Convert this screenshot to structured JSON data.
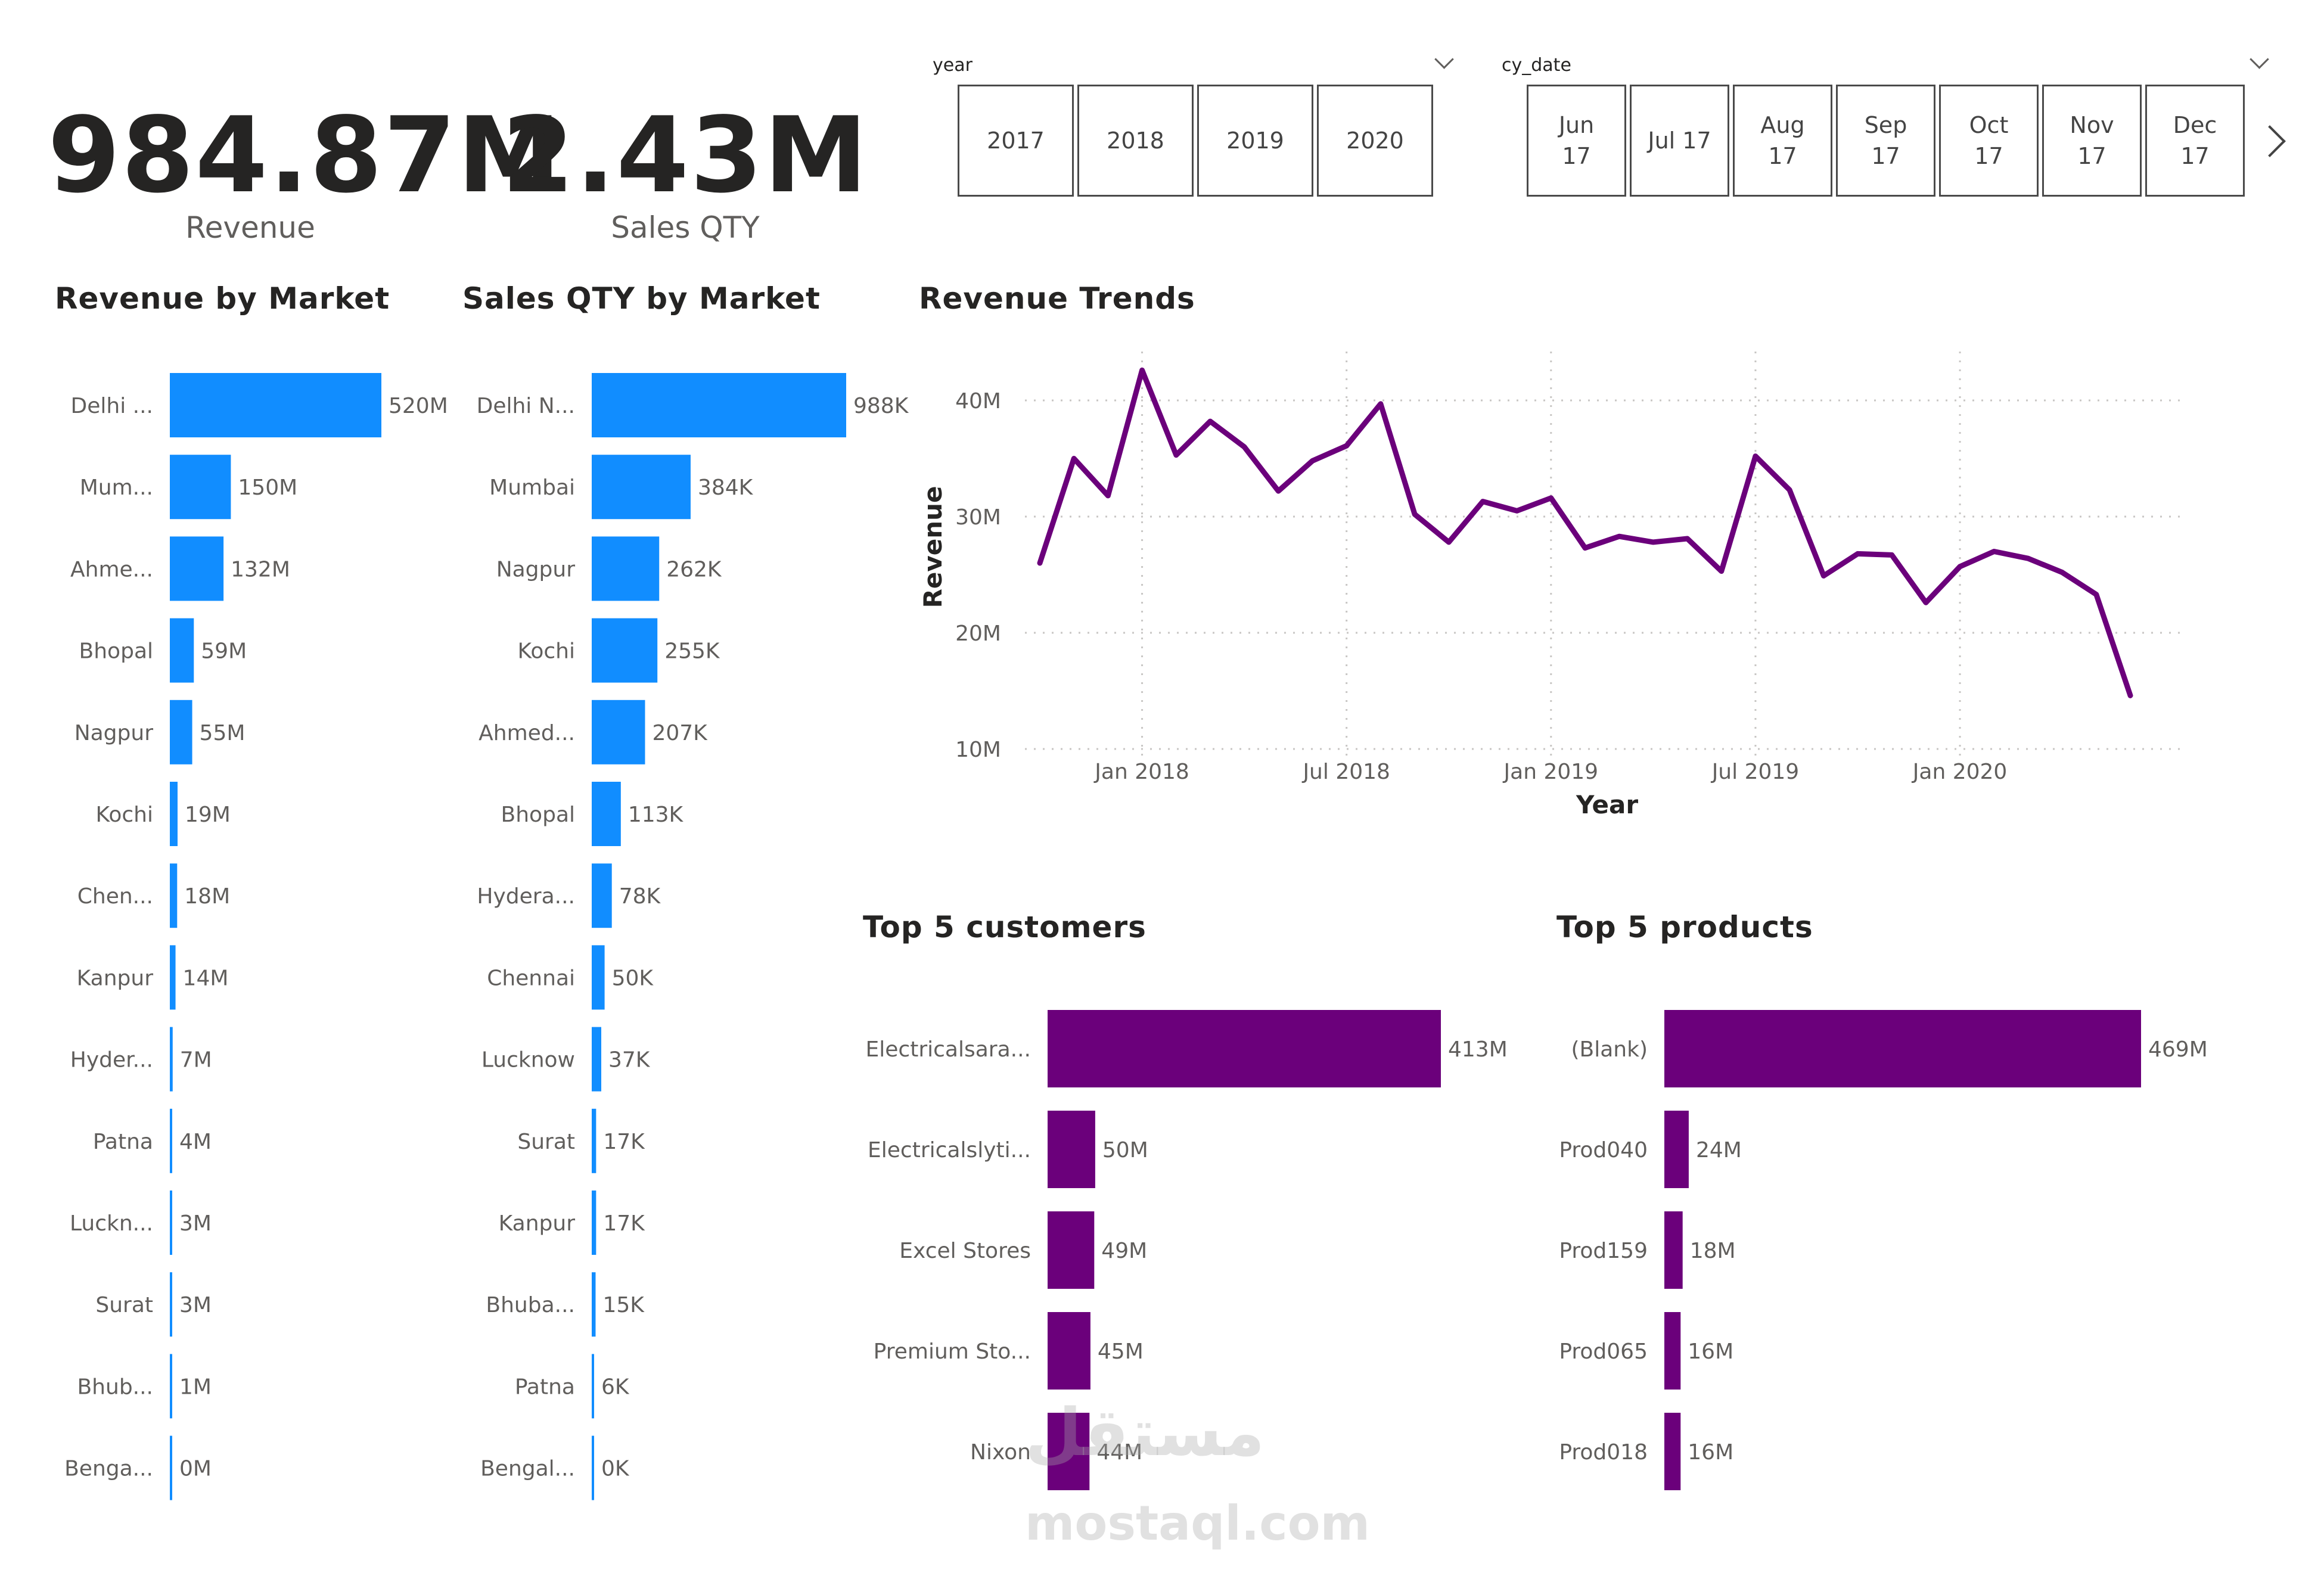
{
  "kpis": [
    {
      "value": "984.87M",
      "label": "Revenue"
    },
    {
      "value": "2.43M",
      "label": "Sales QTY"
    }
  ],
  "slicers": {
    "year": {
      "header": "year",
      "options": [
        "2017",
        "2018",
        "2019",
        "2020"
      ]
    },
    "cy_date": {
      "header": "cy_date",
      "options": [
        "Jun\n17",
        "Jul 17",
        "Aug\n17",
        "Sep\n17",
        "Oct\n17",
        "Nov\n17",
        "Dec\n17"
      ]
    }
  },
  "colors": {
    "blue": "#118DFF",
    "purple": "#6B007B",
    "grid": "#C8C6C4",
    "label": "#605E5C"
  },
  "chart_data": [
    {
      "id": "revenue_by_market",
      "type": "bar",
      "orientation": "horizontal",
      "title": "Revenue by Market",
      "categories": [
        "Delhi ...",
        "Mum...",
        "Ahme...",
        "Bhopal",
        "Nagpur",
        "Kochi",
        "Chen...",
        "Kanpur",
        "Hyder...",
        "Patna",
        "Luckn...",
        "Surat",
        "Bhub...",
        "Benga..."
      ],
      "values": [
        520,
        150,
        132,
        59,
        55,
        19,
        18,
        14,
        7,
        4,
        3,
        3,
        1,
        0
      ],
      "labels": [
        "520M",
        "150M",
        "132M",
        "59M",
        "55M",
        "19M",
        "18M",
        "14M",
        "7M",
        "4M",
        "3M",
        "3M",
        "1M",
        "0M"
      ],
      "unit": "M",
      "xlim": [
        0,
        520
      ]
    },
    {
      "id": "sales_qty_by_market",
      "type": "bar",
      "orientation": "horizontal",
      "title": "Sales QTY by Market",
      "categories": [
        "Delhi N...",
        "Mumbai",
        "Nagpur",
        "Kochi",
        "Ahmed...",
        "Bhopal",
        "Hydera...",
        "Chennai",
        "Lucknow",
        "Surat",
        "Kanpur",
        "Bhuba...",
        "Patna",
        "Bengal..."
      ],
      "values": [
        988,
        384,
        262,
        255,
        207,
        113,
        78,
        50,
        37,
        17,
        17,
        15,
        6,
        0
      ],
      "labels": [
        "988K",
        "384K",
        "262K",
        "255K",
        "207K",
        "113K",
        "78K",
        "50K",
        "37K",
        "17K",
        "17K",
        "15K",
        "6K",
        "0K"
      ],
      "unit": "K",
      "xlim": [
        0,
        988
      ]
    },
    {
      "id": "revenue_trends",
      "type": "line",
      "title": "Revenue Trends",
      "xlabel": "Year",
      "ylabel": "Revenue",
      "x": [
        "2017-10",
        "2017-11",
        "2017-12",
        "2018-01",
        "2018-02",
        "2018-03",
        "2018-04",
        "2018-05",
        "2018-06",
        "2018-07",
        "2018-08",
        "2018-09",
        "2018-10",
        "2018-11",
        "2018-12",
        "2019-01",
        "2019-02",
        "2019-03",
        "2019-04",
        "2019-05",
        "2019-06",
        "2019-07",
        "2019-08",
        "2019-09",
        "2019-10",
        "2019-11",
        "2019-12",
        "2020-01",
        "2020-02",
        "2020-03",
        "2020-04",
        "2020-05",
        "2020-06"
      ],
      "series": [
        {
          "values": [
            26,
            35,
            31.8,
            42.6,
            35.3,
            38.2,
            36,
            32.2,
            34.8,
            36.1,
            39.7,
            30.2,
            27.8,
            31.3,
            30.5,
            31.6,
            27.3,
            28.3,
            27.8,
            28.1,
            25.3,
            35.2,
            32.3,
            24.9,
            26.8,
            26.7,
            22.6,
            25.7,
            27,
            26.4,
            25.2,
            23.3,
            14.6
          ]
        }
      ],
      "y_unit": "M",
      "ylim": [
        10,
        43
      ],
      "yticks": [
        "10M",
        "20M",
        "30M",
        "40M"
      ],
      "ytick_values": [
        10,
        20,
        30,
        40
      ],
      "xticks": [
        "Jan 2018",
        "Jul 2018",
        "Jan 2019",
        "Jul 2019",
        "Jan 2020"
      ],
      "xtick_values": [
        "2018-01",
        "2018-07",
        "2019-01",
        "2019-07",
        "2020-01"
      ],
      "grid": true
    },
    {
      "id": "top5_customers",
      "type": "bar",
      "orientation": "horizontal",
      "title": "Top 5 customers",
      "categories": [
        "Electricalsara...",
        "Electricalslyti...",
        "Excel Stores",
        "Premium Sto...",
        "Nixon"
      ],
      "values": [
        413,
        50,
        49,
        45,
        44
      ],
      "labels": [
        "413M",
        "50M",
        "49M",
        "45M",
        "44M"
      ],
      "unit": "M",
      "xlim": [
        0,
        413
      ]
    },
    {
      "id": "top5_products",
      "type": "bar",
      "orientation": "horizontal",
      "title": "Top 5 products",
      "categories": [
        "(Blank)",
        "Prod040",
        "Prod159",
        "Prod065",
        "Prod018"
      ],
      "values": [
        469,
        24,
        18,
        16,
        16
      ],
      "labels": [
        "469M",
        "24M",
        "18M",
        "16M",
        "16M"
      ],
      "unit": "M",
      "xlim": [
        0,
        469
      ]
    }
  ],
  "watermark": {
    "arabic": "مستقل",
    "latin": "mostaql.com"
  }
}
